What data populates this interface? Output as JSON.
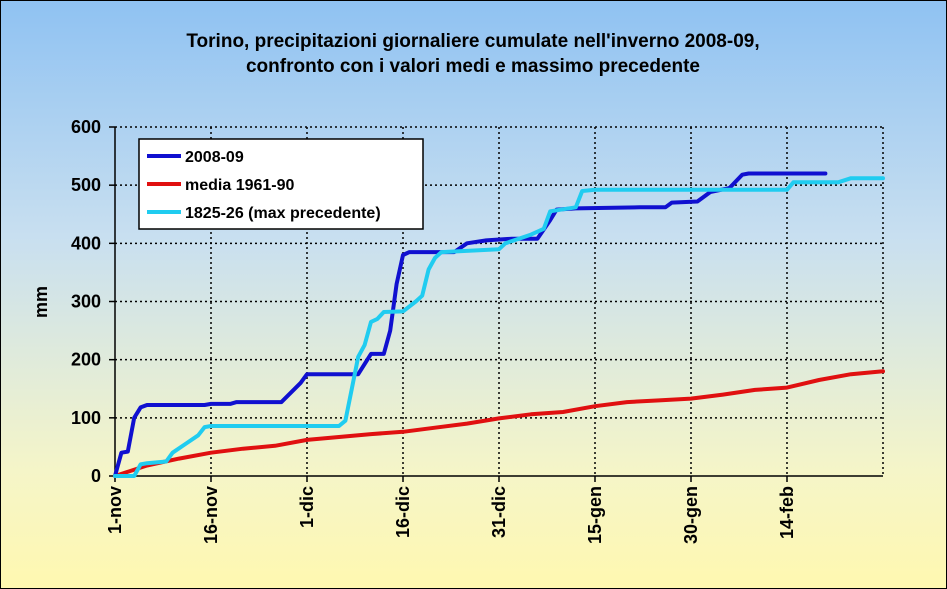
{
  "chart_data": {
    "type": "line",
    "title_line1": "Torino, precipitazioni giornaliere cumulate nell'inverno 2008-09,",
    "title_line2": "confronto con i valori medi e massimo precedente",
    "ylabel": "mm",
    "ylim": [
      0,
      600
    ],
    "yticks": [
      "0",
      "100",
      "200",
      "300",
      "400",
      "500",
      "600"
    ],
    "xlim": [
      "2008-11-01",
      "2009-03-01"
    ],
    "xticks": [
      {
        "date": "2008-11-01",
        "label": "1-nov"
      },
      {
        "date": "2008-11-16",
        "label": "16-nov"
      },
      {
        "date": "2008-12-01",
        "label": "1-dic"
      },
      {
        "date": "2008-12-16",
        "label": "16-dic"
      },
      {
        "date": "2008-12-31",
        "label": "31-dic"
      },
      {
        "date": "2009-01-15",
        "label": "15-gen"
      },
      {
        "date": "2009-01-30",
        "label": "30-gen"
      },
      {
        "date": "2009-02-14",
        "label": "14-feb"
      }
    ],
    "grid": true,
    "legend_position": "top-left",
    "series": [
      {
        "name": "2008-09",
        "color": "#1010d0",
        "points": [
          [
            "2008-11-01",
            0
          ],
          [
            "2008-11-02",
            40
          ],
          [
            "2008-11-03",
            42
          ],
          [
            "2008-11-04",
            100
          ],
          [
            "2008-11-05",
            118
          ],
          [
            "2008-11-06",
            122
          ],
          [
            "2008-11-15",
            122
          ],
          [
            "2008-11-16",
            124
          ],
          [
            "2008-11-19",
            124
          ],
          [
            "2008-11-20",
            127
          ],
          [
            "2008-11-27",
            127
          ],
          [
            "2008-11-30",
            160
          ],
          [
            "2008-12-01",
            175
          ],
          [
            "2008-12-08",
            175
          ],
          [
            "2008-12-09",
            175
          ],
          [
            "2008-12-11",
            210
          ],
          [
            "2008-12-13",
            210
          ],
          [
            "2008-12-14",
            250
          ],
          [
            "2008-12-15",
            330
          ],
          [
            "2008-12-16",
            380
          ],
          [
            "2008-12-17",
            385
          ],
          [
            "2008-12-24",
            385
          ],
          [
            "2008-12-26",
            400
          ],
          [
            "2008-12-29",
            405
          ],
          [
            "2009-01-02",
            408
          ],
          [
            "2009-01-06",
            408
          ],
          [
            "2009-01-08",
            440
          ],
          [
            "2009-01-09",
            458
          ],
          [
            "2009-01-12",
            460
          ],
          [
            "2009-01-22",
            462
          ],
          [
            "2009-01-26",
            462
          ],
          [
            "2009-01-27",
            470
          ],
          [
            "2009-01-31",
            472
          ],
          [
            "2009-02-02",
            488
          ],
          [
            "2009-02-05",
            495
          ],
          [
            "2009-02-07",
            518
          ],
          [
            "2009-02-08",
            520
          ],
          [
            "2009-02-20",
            520
          ]
        ]
      },
      {
        "name": "media 1961-90",
        "color": "#e01010",
        "points": [
          [
            "2008-11-01",
            0
          ],
          [
            "2008-11-06",
            18
          ],
          [
            "2008-11-11",
            30
          ],
          [
            "2008-11-16",
            40
          ],
          [
            "2008-11-21",
            47
          ],
          [
            "2008-11-26",
            52
          ],
          [
            "2008-12-01",
            62
          ],
          [
            "2008-12-06",
            67
          ],
          [
            "2008-12-11",
            72
          ],
          [
            "2008-12-16",
            76
          ],
          [
            "2008-12-21",
            83
          ],
          [
            "2008-12-26",
            90
          ],
          [
            "2008-12-31",
            99
          ],
          [
            "2009-01-05",
            106
          ],
          [
            "2009-01-10",
            110
          ],
          [
            "2009-01-15",
            120
          ],
          [
            "2009-01-20",
            127
          ],
          [
            "2009-01-25",
            130
          ],
          [
            "2009-01-30",
            133
          ],
          [
            "2009-02-04",
            140
          ],
          [
            "2009-02-09",
            148
          ],
          [
            "2009-02-14",
            152
          ],
          [
            "2009-02-19",
            165
          ],
          [
            "2009-02-24",
            175
          ],
          [
            "2009-03-01",
            180
          ]
        ]
      },
      {
        "name": "1825-26 (max precedente)",
        "color": "#20ccf0",
        "points": [
          [
            "2008-11-01",
            0
          ],
          [
            "2008-11-04",
            0
          ],
          [
            "2008-11-05",
            20
          ],
          [
            "2008-11-06",
            22
          ],
          [
            "2008-11-09",
            25
          ],
          [
            "2008-11-10",
            40
          ],
          [
            "2008-11-12",
            55
          ],
          [
            "2008-11-14",
            70
          ],
          [
            "2008-11-15",
            84
          ],
          [
            "2008-11-16",
            86
          ],
          [
            "2008-12-06",
            86
          ],
          [
            "2008-12-07",
            95
          ],
          [
            "2008-12-08",
            150
          ],
          [
            "2008-12-09",
            205
          ],
          [
            "2008-12-10",
            225
          ],
          [
            "2008-12-11",
            265
          ],
          [
            "2008-12-12",
            270
          ],
          [
            "2008-12-13",
            282
          ],
          [
            "2008-12-16",
            283
          ],
          [
            "2008-12-18",
            300
          ],
          [
            "2008-12-19",
            310
          ],
          [
            "2008-12-20",
            355
          ],
          [
            "2008-12-21",
            375
          ],
          [
            "2008-12-22",
            385
          ],
          [
            "2008-12-31",
            390
          ],
          [
            "2009-01-01",
            400
          ],
          [
            "2009-01-05",
            415
          ],
          [
            "2009-01-07",
            425
          ],
          [
            "2009-01-08",
            455
          ],
          [
            "2009-01-12",
            462
          ],
          [
            "2009-01-13",
            490
          ],
          [
            "2009-01-15",
            492
          ],
          [
            "2009-02-14",
            492
          ],
          [
            "2009-02-15",
            505
          ],
          [
            "2009-02-22",
            505
          ],
          [
            "2009-02-24",
            512
          ],
          [
            "2009-03-01",
            512
          ]
        ]
      }
    ]
  }
}
